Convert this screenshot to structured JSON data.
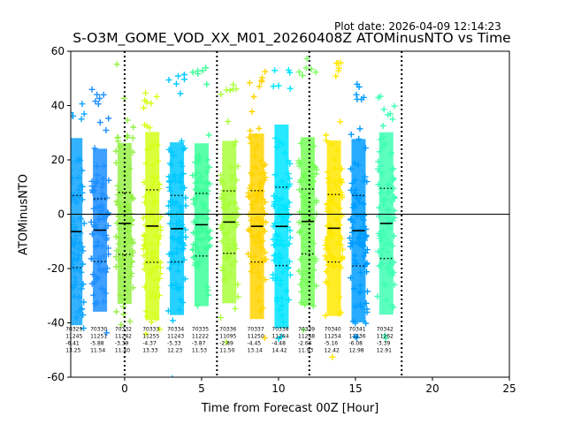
{
  "chart_data": {
    "type": "scatter",
    "plot_date": "Plot date: 2026-04-09 12:14:23",
    "title": "S-O3M_GOME_VOD_XX_M01_20260408Z ATOMinusNTO vs Time",
    "xlabel": "Time from Forecast 00Z [Hour]",
    "ylabel": "ATOMinusNTO",
    "xlim": [
      -3.5,
      25
    ],
    "ylim": [
      -60,
      60
    ],
    "xticks": [
      "0",
      "5",
      "10",
      "15",
      "20",
      "25"
    ],
    "yticks": [
      "60",
      "40",
      "20",
      "0",
      "-20",
      "-40",
      "-60"
    ],
    "vlines": [
      0,
      6,
      12,
      18
    ],
    "hline": 0,
    "orbits": [
      {
        "x": -3.2,
        "color": "#0ea5ff",
        "id": "70329",
        "count": "11245",
        "mean": "-6.41",
        "std": "13.25",
        "top": 42
      },
      {
        "x": -1.6,
        "color": "#1e8fff",
        "id": "70330",
        "count": "11251",
        "mean": "-5.88",
        "std": "11.54",
        "top": 48
      },
      {
        "x": 0.0,
        "color": "#96f048",
        "id": "70332",
        "count": "11242",
        "mean": "-3.39",
        "std": "11.40",
        "top": 36
      },
      {
        "x": 1.8,
        "color": "#d6ff1a",
        "id": "70333",
        "count": "11255",
        "mean": "-4.37",
        "std": "13.33",
        "top": 46
      },
      {
        "x": 3.4,
        "color": "#00c8ff",
        "id": "70334",
        "count": "11243",
        "mean": "-5.33",
        "std": "12.23",
        "top": 52
      },
      {
        "x": 5.0,
        "color": "#3cff9a",
        "id": "70335",
        "count": "11222",
        "mean": "-3.87",
        "std": "11.53",
        "top": 55
      },
      {
        "x": 6.8,
        "color": "#aaff3c",
        "id": "70336",
        "count": "11095",
        "mean": "-2.89",
        "std": "11.50",
        "top": 50
      },
      {
        "x": 8.6,
        "color": "#ffd400",
        "id": "70337",
        "count": "11250",
        "mean": "-4.45",
        "std": "13.14",
        "top": 55
      },
      {
        "x": 10.2,
        "color": "#00e4ff",
        "id": "70338",
        "count": "11264",
        "mean": "-4.48",
        "std": "14.42",
        "top": 54
      },
      {
        "x": 11.9,
        "color": "#78ff5a",
        "id": "70339",
        "count": "11248",
        "mean": "-2.66",
        "std": "11.93",
        "top": 58
      },
      {
        "x": 13.6,
        "color": "#ffe800",
        "id": "70340",
        "count": "11254",
        "mean": "-5.16",
        "std": "12.42",
        "top": 57
      },
      {
        "x": 15.2,
        "color": "#009cff",
        "id": "70341",
        "count": "11236",
        "mean": "-6.08",
        "std": "12.98",
        "top": 50
      },
      {
        "x": 17.0,
        "color": "#40ffb4",
        "id": "70342",
        "count": "11262",
        "mean": "-3.39",
        "std": "12.91",
        "top": 44
      }
    ]
  }
}
